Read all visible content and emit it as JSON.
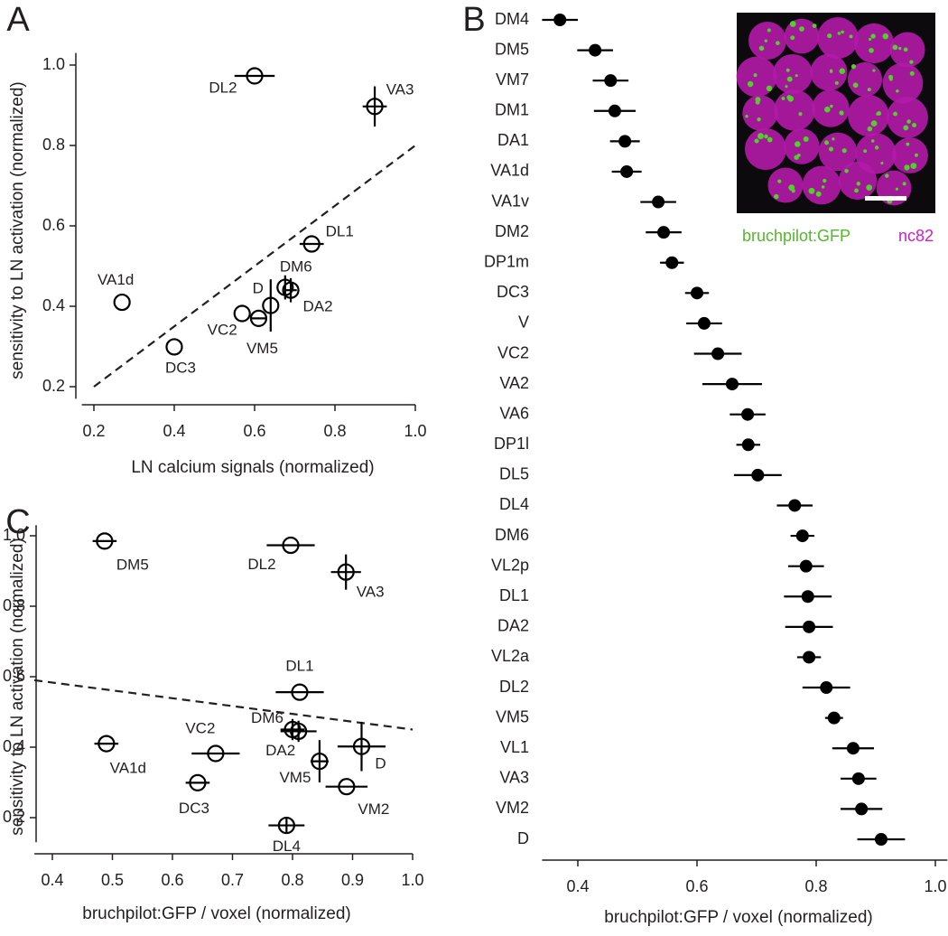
{
  "chart_data": [
    {
      "type": "scatter",
      "panel": "A",
      "xlabel": "LN calcium signals (normalized)",
      "ylabel": "sensitivity to LN activation (normalized)",
      "xlim": [
        0.17,
        1.0
      ],
      "ylim": [
        0.17,
        1.03
      ],
      "xticks": [
        0.2,
        0.4,
        0.6,
        0.8,
        {
          "value": 1,
          "label": "1.0"
        }
      ],
      "yticks": [
        0.2,
        0.4,
        0.6,
        0.8,
        {
          "value": 1,
          "label": "1.0"
        }
      ],
      "color": "#000000",
      "points": {
        "labels": [
          "DL2",
          "VA3",
          "DL1",
          "DM6",
          "D",
          "DA2",
          "VA1d",
          "VC2",
          "VM5",
          "DC3"
        ],
        "x": [
          0.6,
          0.899,
          0.742,
          0.676,
          0.64,
          0.69,
          0.27,
          0.569,
          0.61,
          0.4
        ],
        "y": [
          0.973,
          0.897,
          0.555,
          0.447,
          0.402,
          0.44,
          0.41,
          0.382,
          0.37,
          0.299
        ],
        "xerr": [
          0.05,
          0.03,
          0.03,
          null,
          null,
          0.015,
          null,
          null,
          0.02,
          null
        ],
        "yerr": [
          null,
          0.05,
          null,
          0.03,
          0.065,
          0.03,
          null,
          null,
          null,
          null
        ]
      },
      "reference_line": {
        "x": [
          0.2,
          1.0
        ],
        "y": [
          0.2,
          0.8
        ]
      }
    },
    {
      "type": "dot",
      "panel": "B",
      "xlabel": "bruchpilot:GFP / voxel (normalized)",
      "xlim": [
        0.34,
        1.02
      ],
      "xticks": [
        0.4,
        0.6,
        0.8,
        {
          "value": 1,
          "label": "1.0"
        }
      ],
      "color": "#000000",
      "categories": [
        "DM4",
        "DM5",
        "VM7",
        "DM1",
        "DA1",
        "VA1d",
        "VA1v",
        "DM2",
        "DP1m",
        "DC3",
        "V",
        "VC2",
        "VA2",
        "VA6",
        "DP1l",
        "DL5",
        "DL4",
        "DM6",
        "VL2p",
        "DL1",
        "DA2",
        "VL2a",
        "DL2",
        "VM5",
        "VL1",
        "VA3",
        "VM2",
        "D"
      ],
      "values": [
        0.37,
        0.429,
        0.455,
        0.462,
        0.479,
        0.482,
        0.535,
        0.544,
        0.558,
        0.6,
        0.612,
        0.635,
        0.659,
        0.685,
        0.686,
        0.702,
        0.764,
        0.777,
        0.783,
        0.786,
        0.788,
        0.788,
        0.817,
        0.83,
        0.862,
        0.871,
        0.876,
        0.909
      ],
      "errors": [
        0.03,
        0.03,
        0.03,
        0.035,
        0.025,
        0.025,
        0.03,
        0.03,
        0.02,
        0.02,
        0.03,
        0.04,
        0.05,
        0.03,
        0.02,
        0.04,
        0.03,
        0.02,
        0.03,
        0.04,
        0.04,
        0.02,
        0.04,
        0.015,
        0.035,
        0.03,
        0.035,
        0.04
      ],
      "image_labels": [
        {
          "text": "bruchpilot:GFP",
          "color": "#55b82a"
        },
        {
          "text": "nc82",
          "color": "#d11cc8"
        }
      ]
    },
    {
      "type": "scatter",
      "panel": "C",
      "xlabel": "bruchpilot:GFP / voxel (normalized)",
      "ylabel": "sensitivity to LN activation (normalized)",
      "xlim": [
        0.37,
        1.0
      ],
      "ylim": [
        0.13,
        1.03
      ],
      "xticks": [
        0.4,
        0.5,
        0.6,
        0.7,
        0.8,
        0.9,
        {
          "value": 1,
          "label": "1.0"
        }
      ],
      "yticks": [
        0.2,
        0.4,
        0.6,
        0.8,
        {
          "value": 1,
          "label": "1.0"
        }
      ],
      "color": "#000000",
      "points": {
        "labels": [
          "DM5",
          "DL2",
          "VA3",
          "DL1",
          "DM6",
          "DA2",
          "VA1d",
          "VC2",
          "DC3",
          "VM5",
          "D",
          "VM2",
          "DL4"
        ],
        "x": [
          0.487,
          0.797,
          0.889,
          0.812,
          0.8,
          0.81,
          0.49,
          0.672,
          0.642,
          0.845,
          0.915,
          0.89,
          0.79
        ],
        "y": [
          0.985,
          0.973,
          0.897,
          0.556,
          0.45,
          0.445,
          0.41,
          0.382,
          0.299,
          0.36,
          0.402,
          0.288,
          0.178
        ],
        "xerr": [
          0.02,
          0.04,
          0.025,
          0.04,
          0.02,
          0.03,
          0.02,
          0.04,
          0.02,
          0.015,
          0.04,
          0.035,
          0.03
        ],
        "yerr": [
          null,
          null,
          0.05,
          null,
          0.03,
          0.03,
          null,
          null,
          null,
          0.06,
          0.07,
          null,
          0.02
        ]
      },
      "reference_line": {
        "x": [
          0.37,
          1.0
        ],
        "y": [
          0.59,
          0.45
        ]
      }
    }
  ]
}
